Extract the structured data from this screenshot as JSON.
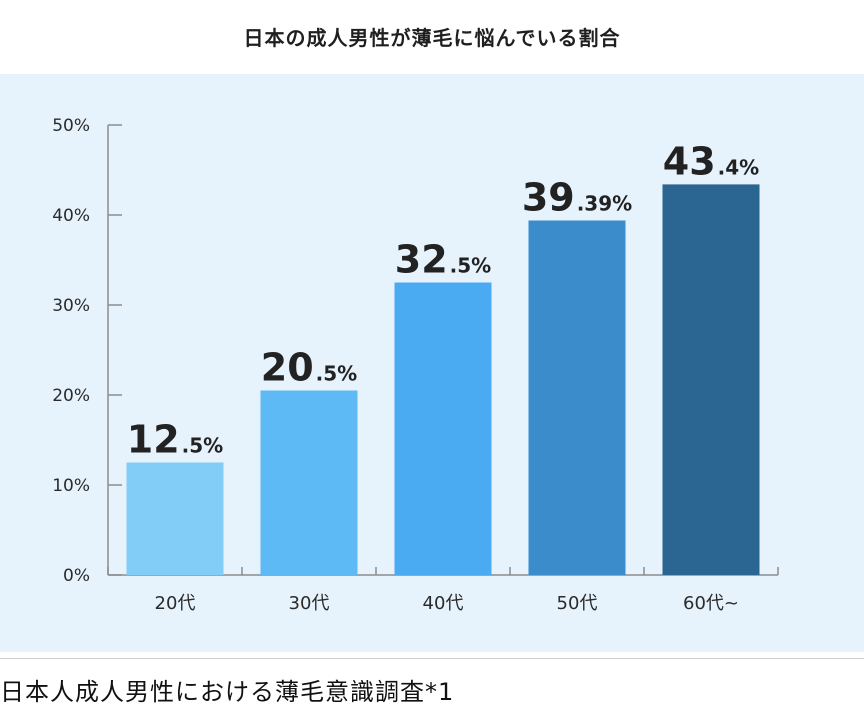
{
  "chart_title": "日本の成人男性が薄毛に悩んでいる割合",
  "caption": "日本人成人男性における薄毛意識調査*1",
  "chart_data": {
    "type": "bar",
    "title": "日本の成人男性が薄毛に悩んでいる割合",
    "categories": [
      "20代",
      "30代",
      "40代",
      "50代",
      "60代~"
    ],
    "values": [
      12.5,
      20.5,
      32.5,
      39.39,
      43.4
    ],
    "value_labels": [
      {
        "int": "12",
        "frac": ".5%"
      },
      {
        "int": "20",
        "frac": ".5%"
      },
      {
        "int": "32",
        "frac": ".5%"
      },
      {
        "int": "39",
        "frac": ".39%"
      },
      {
        "int": "43",
        "frac": ".4%"
      }
    ],
    "bar_colors": [
      "#82cdf8",
      "#5ebaf5",
      "#4aaaf2",
      "#3b8ccb",
      "#2b6591"
    ],
    "yticks": [
      "0%",
      "10%",
      "20%",
      "30%",
      "40%",
      "50%"
    ],
    "ylim": [
      0,
      50
    ],
    "xlabel": "",
    "ylabel": "",
    "grid": false,
    "legend": "none"
  },
  "colors": {
    "panel_background": "#e6f3fc",
    "axis": "#8c8c8c",
    "label_text": "#2b2b2b"
  }
}
